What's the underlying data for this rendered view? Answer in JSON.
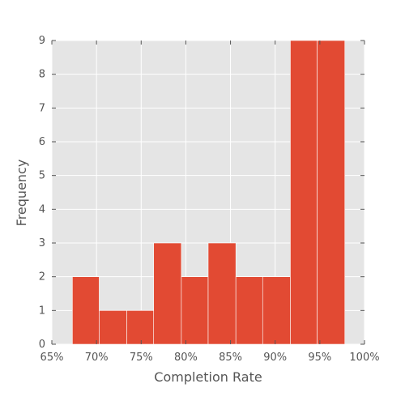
{
  "chart_data": {
    "type": "bar",
    "xlabel": "Completion Rate",
    "ylabel": "Frequency",
    "xlim": [
      0.65,
      1.0
    ],
    "ylim": [
      0,
      9
    ],
    "x_tick_values": [
      0.65,
      0.7,
      0.75,
      0.8,
      0.85,
      0.9,
      0.95,
      1.0
    ],
    "x_tick_labels": [
      "65%",
      "70%",
      "75%",
      "80%",
      "85%",
      "90%",
      "95%",
      "100%"
    ],
    "y_tick_values": [
      0,
      1,
      2,
      3,
      4,
      5,
      6,
      7,
      8,
      9
    ],
    "y_tick_labels": [
      "0",
      "1",
      "2",
      "3",
      "4",
      "5",
      "6",
      "7",
      "8",
      "9"
    ],
    "bins": [
      {
        "start": 0.673,
        "end": 0.703,
        "value": 2
      },
      {
        "start": 0.703,
        "end": 0.734,
        "value": 1
      },
      {
        "start": 0.734,
        "end": 0.764,
        "value": 1
      },
      {
        "start": 0.764,
        "end": 0.795,
        "value": 3
      },
      {
        "start": 0.795,
        "end": 0.825,
        "value": 2
      },
      {
        "start": 0.825,
        "end": 0.856,
        "value": 3
      },
      {
        "start": 0.856,
        "end": 0.886,
        "value": 2
      },
      {
        "start": 0.886,
        "end": 0.917,
        "value": 2
      },
      {
        "start": 0.917,
        "end": 0.947,
        "value": 9
      },
      {
        "start": 0.947,
        "end": 0.978,
        "value": 9
      }
    ],
    "grid": true,
    "colors": {
      "bar": "#E24A33",
      "background": "#E5E5E5",
      "grid": "#FFFFFF",
      "text": "#555555"
    }
  }
}
